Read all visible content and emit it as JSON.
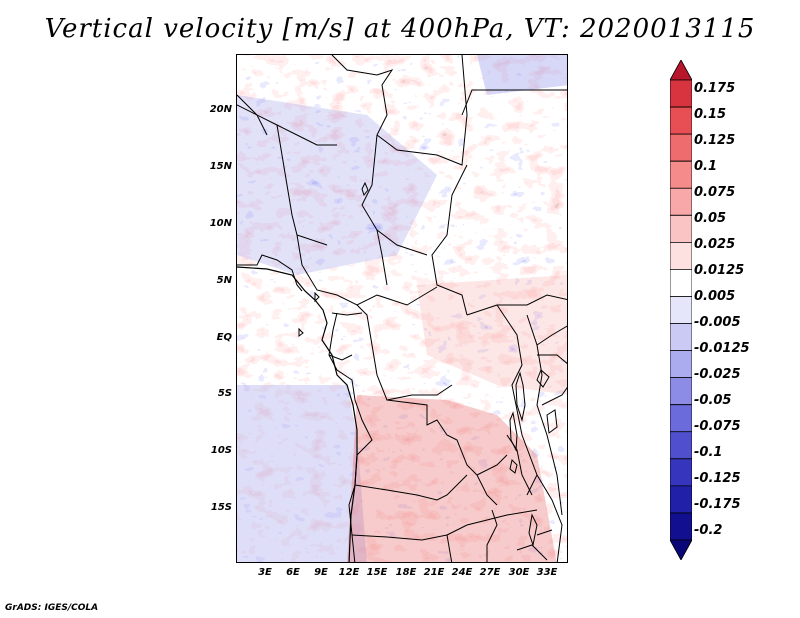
{
  "title": "Vertical velocity [m/s] at 400hPa, VT: 2020013115",
  "credit": "GrADS: IGES/COLA",
  "map": {
    "region": "Central Africa",
    "lon_range": [
      0,
      35
    ],
    "lat_range": [
      -20,
      25
    ],
    "lat_labels": [
      "20N",
      "15N",
      "10N",
      "5N",
      "EQ",
      "5S",
      "10S",
      "15S"
    ],
    "lon_labels": [
      "3E",
      "6E",
      "9E",
      "12E",
      "15E",
      "18E",
      "21E",
      "24E",
      "27E",
      "30E",
      "33E"
    ]
  },
  "colorbar": {
    "labels": [
      "0.175",
      "0.15",
      "0.125",
      "0.1",
      "0.075",
      "0.05",
      "0.025",
      "0.0125",
      "0.005",
      "-0.005",
      "-0.0125",
      "-0.025",
      "-0.05",
      "-0.075",
      "-0.1",
      "-0.125",
      "-0.175",
      "-0.2"
    ],
    "colors": [
      "#b8162a",
      "#d8343f",
      "#e84f55",
      "#ef6c6e",
      "#f58b8b",
      "#f8a8a8",
      "#fbc4c4",
      "#fde0e0",
      "#ffffff",
      "#e6e6fb",
      "#cacaf5",
      "#ababef",
      "#8c8ce6",
      "#6b6bdc",
      "#5050cf",
      "#3535be",
      "#2020a8",
      "#120f90",
      "#0a0878"
    ]
  }
}
